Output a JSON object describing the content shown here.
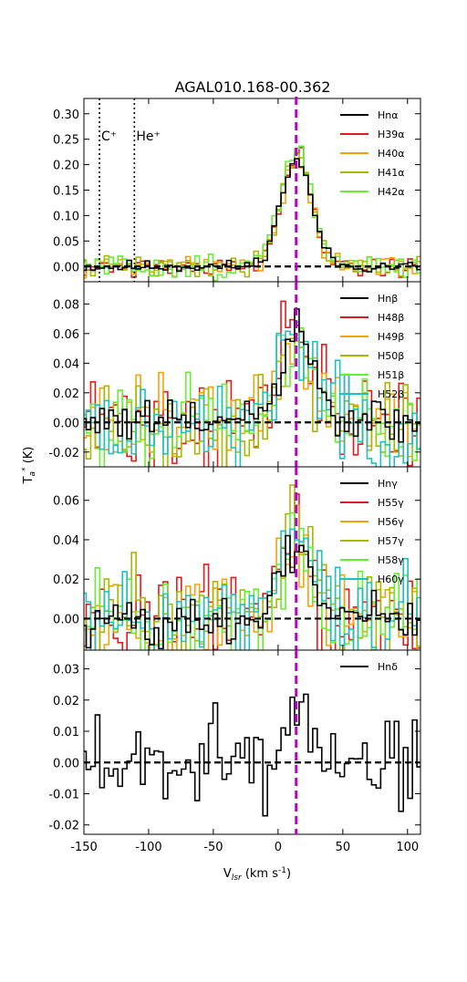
{
  "figure": {
    "title": "AGAL010.168-00.362",
    "xlabel": "V<sub>lsr</sub> (km s<sup>-1</sup>)",
    "ylabel": "T<sub>a</sub><sup>*</sup> (K)"
  },
  "chart_data": [
    {
      "type": "line",
      "panel": "alpha",
      "xlim": [
        -150,
        110
      ],
      "ylim": [
        -0.03,
        0.33
      ],
      "yticks": [
        0.0,
        0.05,
        0.1,
        0.15,
        0.2,
        0.25,
        0.3
      ],
      "ytick_labels": [
        "0.00",
        "0.05",
        "0.10",
        "0.15",
        "0.20",
        "0.25",
        "0.30"
      ],
      "reference_lines": [
        {
          "x": -138,
          "label": "C⁺",
          "style": "dotted",
          "color": "#000000"
        },
        {
          "x": -111,
          "label": "He⁺",
          "style": "dotted",
          "color": "#000000"
        }
      ],
      "series": [
        {
          "name": "Hnα",
          "color": "#000000",
          "shape": {
            "peak": 0.21,
            "noise": 0.006,
            "seed": 11
          }
        },
        {
          "name": "H39α",
          "color": "#e31a1c",
          "shape": {
            "peak": 0.22,
            "noise": 0.01,
            "seed": 21
          }
        },
        {
          "name": "H40α",
          "color": "#f5a20a",
          "shape": {
            "peak": 0.21,
            "noise": 0.01,
            "seed": 31
          }
        },
        {
          "name": "H41α",
          "color": "#a8b800",
          "shape": {
            "peak": 0.22,
            "noise": 0.01,
            "seed": 41
          }
        },
        {
          "name": "H42α",
          "color": "#66ee33",
          "shape": {
            "peak": 0.23,
            "noise": 0.012,
            "seed": 51
          }
        }
      ]
    },
    {
      "type": "line",
      "panel": "beta",
      "xlim": [
        -150,
        110
      ],
      "ylim": [
        -0.03,
        0.095
      ],
      "yticks": [
        -0.02,
        0.0,
        0.02,
        0.04,
        0.06,
        0.08
      ],
      "ytick_labels": [
        "-0.02",
        "0.00",
        "0.02",
        "0.04",
        "0.06",
        "0.08"
      ],
      "series": [
        {
          "name": "Hnβ",
          "color": "#000000",
          "shape": {
            "peak": 0.06,
            "noise": 0.008,
            "seed": 61
          }
        },
        {
          "name": "H48β",
          "color": "#e31a1c",
          "shape": {
            "peak": 0.065,
            "noise": 0.018,
            "seed": 71
          }
        },
        {
          "name": "H49β",
          "color": "#f5a20a",
          "shape": {
            "peak": 0.055,
            "noise": 0.016,
            "seed": 81
          }
        },
        {
          "name": "H50β",
          "color": "#a8b800",
          "shape": {
            "peak": 0.06,
            "noise": 0.016,
            "seed": 91
          }
        },
        {
          "name": "H51β",
          "color": "#66ee33",
          "shape": {
            "peak": 0.058,
            "noise": 0.014,
            "seed": 101
          }
        },
        {
          "name": "H52β",
          "color": "#20c0c0",
          "shape": {
            "peak": 0.07,
            "noise": 0.016,
            "seed": 111
          }
        }
      ]
    },
    {
      "type": "line",
      "panel": "gamma",
      "xlim": [
        -150,
        110
      ],
      "ylim": [
        -0.016,
        0.077
      ],
      "yticks": [
        0.0,
        0.02,
        0.04,
        0.06
      ],
      "ytick_labels": [
        "0.00",
        "0.02",
        "0.04",
        "0.06"
      ],
      "series": [
        {
          "name": "Hnγ",
          "color": "#000000",
          "shape": {
            "peak": 0.035,
            "noise": 0.006,
            "seed": 121
          }
        },
        {
          "name": "H55γ",
          "color": "#e31a1c",
          "shape": {
            "peak": 0.04,
            "noise": 0.013,
            "seed": 131
          }
        },
        {
          "name": "H56γ",
          "color": "#f5a20a",
          "shape": {
            "peak": 0.035,
            "noise": 0.013,
            "seed": 141
          }
        },
        {
          "name": "H57γ",
          "color": "#a8b800",
          "shape": {
            "peak": 0.038,
            "noise": 0.012,
            "seed": 151
          }
        },
        {
          "name": "H58γ",
          "color": "#66ee33",
          "shape": {
            "peak": 0.04,
            "noise": 0.011,
            "seed": 161
          }
        },
        {
          "name": "H60γ",
          "color": "#20c0c0",
          "shape": {
            "peak": 0.045,
            "noise": 0.013,
            "seed": 171
          }
        }
      ]
    },
    {
      "type": "line",
      "panel": "delta",
      "xlim": [
        -150,
        110
      ],
      "ylim": [
        -0.023,
        0.036
      ],
      "yticks": [
        -0.02,
        -0.01,
        0.0,
        0.01,
        0.02,
        0.03
      ],
      "ytick_labels": [
        "-0.02",
        "-0.01",
        "0.00",
        "0.01",
        "0.02",
        "0.03"
      ],
      "series": [
        {
          "name": "Hnδ",
          "color": "#000000",
          "shape": {
            "peak": 0.015,
            "noise": 0.007,
            "seed": 181
          }
        }
      ]
    }
  ],
  "shared": {
    "xticks": [
      -150,
      -100,
      -50,
      0,
      50,
      100
    ],
    "xtick_labels": [
      "-150",
      "-100",
      "-50",
      "0",
      "50",
      "100"
    ],
    "center_velocity": 14,
    "center_line_color": "#bb00cc",
    "baseline_color": "#000000"
  }
}
